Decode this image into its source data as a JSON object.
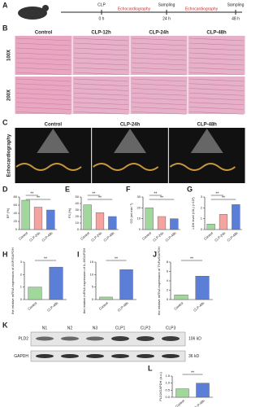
{
  "panels": [
    "A",
    "B",
    "C",
    "D",
    "E",
    "F",
    "G",
    "H",
    "I",
    "J",
    "K",
    "L"
  ],
  "timeline": {
    "clp": "CLP",
    "t0": "0 h",
    "echo1": "Echocardiography",
    "sampling1": "Sampling",
    "t24": "24 h",
    "echo2": "Echocardiography",
    "sampling2": "Sampling",
    "t48": "48 h"
  },
  "histology": {
    "columns": [
      "Control",
      "CLP-12h",
      "CLP-24h",
      "CLP-48h"
    ],
    "rows": [
      "100X",
      "200X"
    ]
  },
  "echo": {
    "columns": [
      "Control",
      "CLP-24h",
      "CLP-48h"
    ],
    "row": "Echocardiography"
  },
  "blot": {
    "lanes": [
      "N1",
      "N2",
      "N3",
      "CLP1",
      "CLP2",
      "CLP3"
    ],
    "proteins": [
      "PLD2",
      "GAPDH"
    ],
    "sizes": [
      "106 kD",
      "36 kD"
    ]
  },
  "chart_data": [
    {
      "type": "bar",
      "ylabel": "EF (%)",
      "categories": [
        "Control",
        "CLP-24h",
        "CLP-48h"
      ],
      "values": [
        72,
        55,
        48
      ],
      "colors": [
        "#9fd89a",
        "#f4a3a0",
        "#5b7fd6"
      ],
      "ylim": [
        0,
        80
      ],
      "yticks": [
        0,
        20,
        40,
        60,
        80
      ],
      "annotations": [
        "**",
        "**"
      ]
    },
    {
      "type": "bar",
      "ylabel": "FS (%)",
      "categories": [
        "Control",
        "CLP-24h",
        "CLP-48h"
      ],
      "values": [
        38,
        26,
        20
      ],
      "colors": [
        "#9fd89a",
        "#f4a3a0",
        "#5b7fd6"
      ],
      "ylim": [
        0,
        50
      ],
      "yticks": [
        0,
        10,
        20,
        30,
        40,
        50
      ],
      "annotations": [
        "**",
        "**"
      ]
    },
    {
      "type": "bar",
      "ylabel": "CO (ml min⁻¹)",
      "categories": [
        "Control",
        "CLP-24h",
        "CLP-48h"
      ],
      "values": [
        20,
        12,
        10
      ],
      "colors": [
        "#9fd89a",
        "#f4a3a0",
        "#5b7fd6"
      ],
      "ylim": [
        0,
        30
      ],
      "yticks": [
        0,
        10,
        20,
        30
      ],
      "annotations": [
        "**",
        "**"
      ]
    },
    {
      "type": "bar",
      "ylabel": "LDH level (U/L) (×10³)",
      "categories": [
        "Control",
        "CLP-24h",
        "CLP-48h"
      ],
      "values": [
        0.5,
        1.4,
        2.3
      ],
      "colors": [
        "#9fd89a",
        "#f4a3a0",
        "#5b7fd6"
      ],
      "ylim": [
        0,
        3
      ],
      "yticks": [
        0,
        1,
        2,
        3
      ],
      "annotations": [
        "**",
        "**"
      ]
    },
    {
      "type": "bar",
      "ylabel": "the relative mRNA expression of ANP/GAPDH",
      "categories": [
        "Control",
        "CLP-48h"
      ],
      "values": [
        1,
        2.6
      ],
      "colors": [
        "#9fd89a",
        "#5b7fd6"
      ],
      "ylim": [
        0,
        3
      ],
      "yticks": [
        0,
        1,
        2,
        3
      ],
      "annotations": [
        "**"
      ]
    },
    {
      "type": "bar",
      "ylabel": "the relative mRNA expression of IL-6/GAPDH",
      "categories": [
        "Control",
        "CLP-48h"
      ],
      "values": [
        1,
        12
      ],
      "colors": [
        "#9fd89a",
        "#5b7fd6"
      ],
      "ylim": [
        0,
        15
      ],
      "yticks": [
        0,
        5,
        10,
        15
      ],
      "annotations": [
        "**"
      ]
    },
    {
      "type": "bar",
      "ylabel": "the relative mRNA expression of TNFα/GAPDH",
      "categories": [
        "Control",
        "CLP-48h"
      ],
      "values": [
        1,
        5
      ],
      "colors": [
        "#9fd89a",
        "#5b7fd6"
      ],
      "ylim": [
        0,
        8
      ],
      "yticks": [
        0,
        2,
        4,
        6,
        8
      ],
      "annotations": [
        "**"
      ]
    },
    {
      "type": "bar",
      "ylabel": "PLD2/GAPDH (a.u.)",
      "categories": [
        "Control",
        "CLP-48h"
      ],
      "values": [
        0.6,
        1.0
      ],
      "colors": [
        "#9fd89a",
        "#5b7fd6"
      ],
      "ylim": [
        0,
        1.5
      ],
      "yticks": [
        {
          "value": 0,
          "label": "0.0"
        },
        {
          "value": 0.5,
          "label": "0.5"
        },
        {
          "value": 1,
          "label": "1.0"
        },
        {
          "value": 1.5,
          "label": "1.5"
        }
      ],
      "annotations": [
        "**"
      ]
    }
  ]
}
